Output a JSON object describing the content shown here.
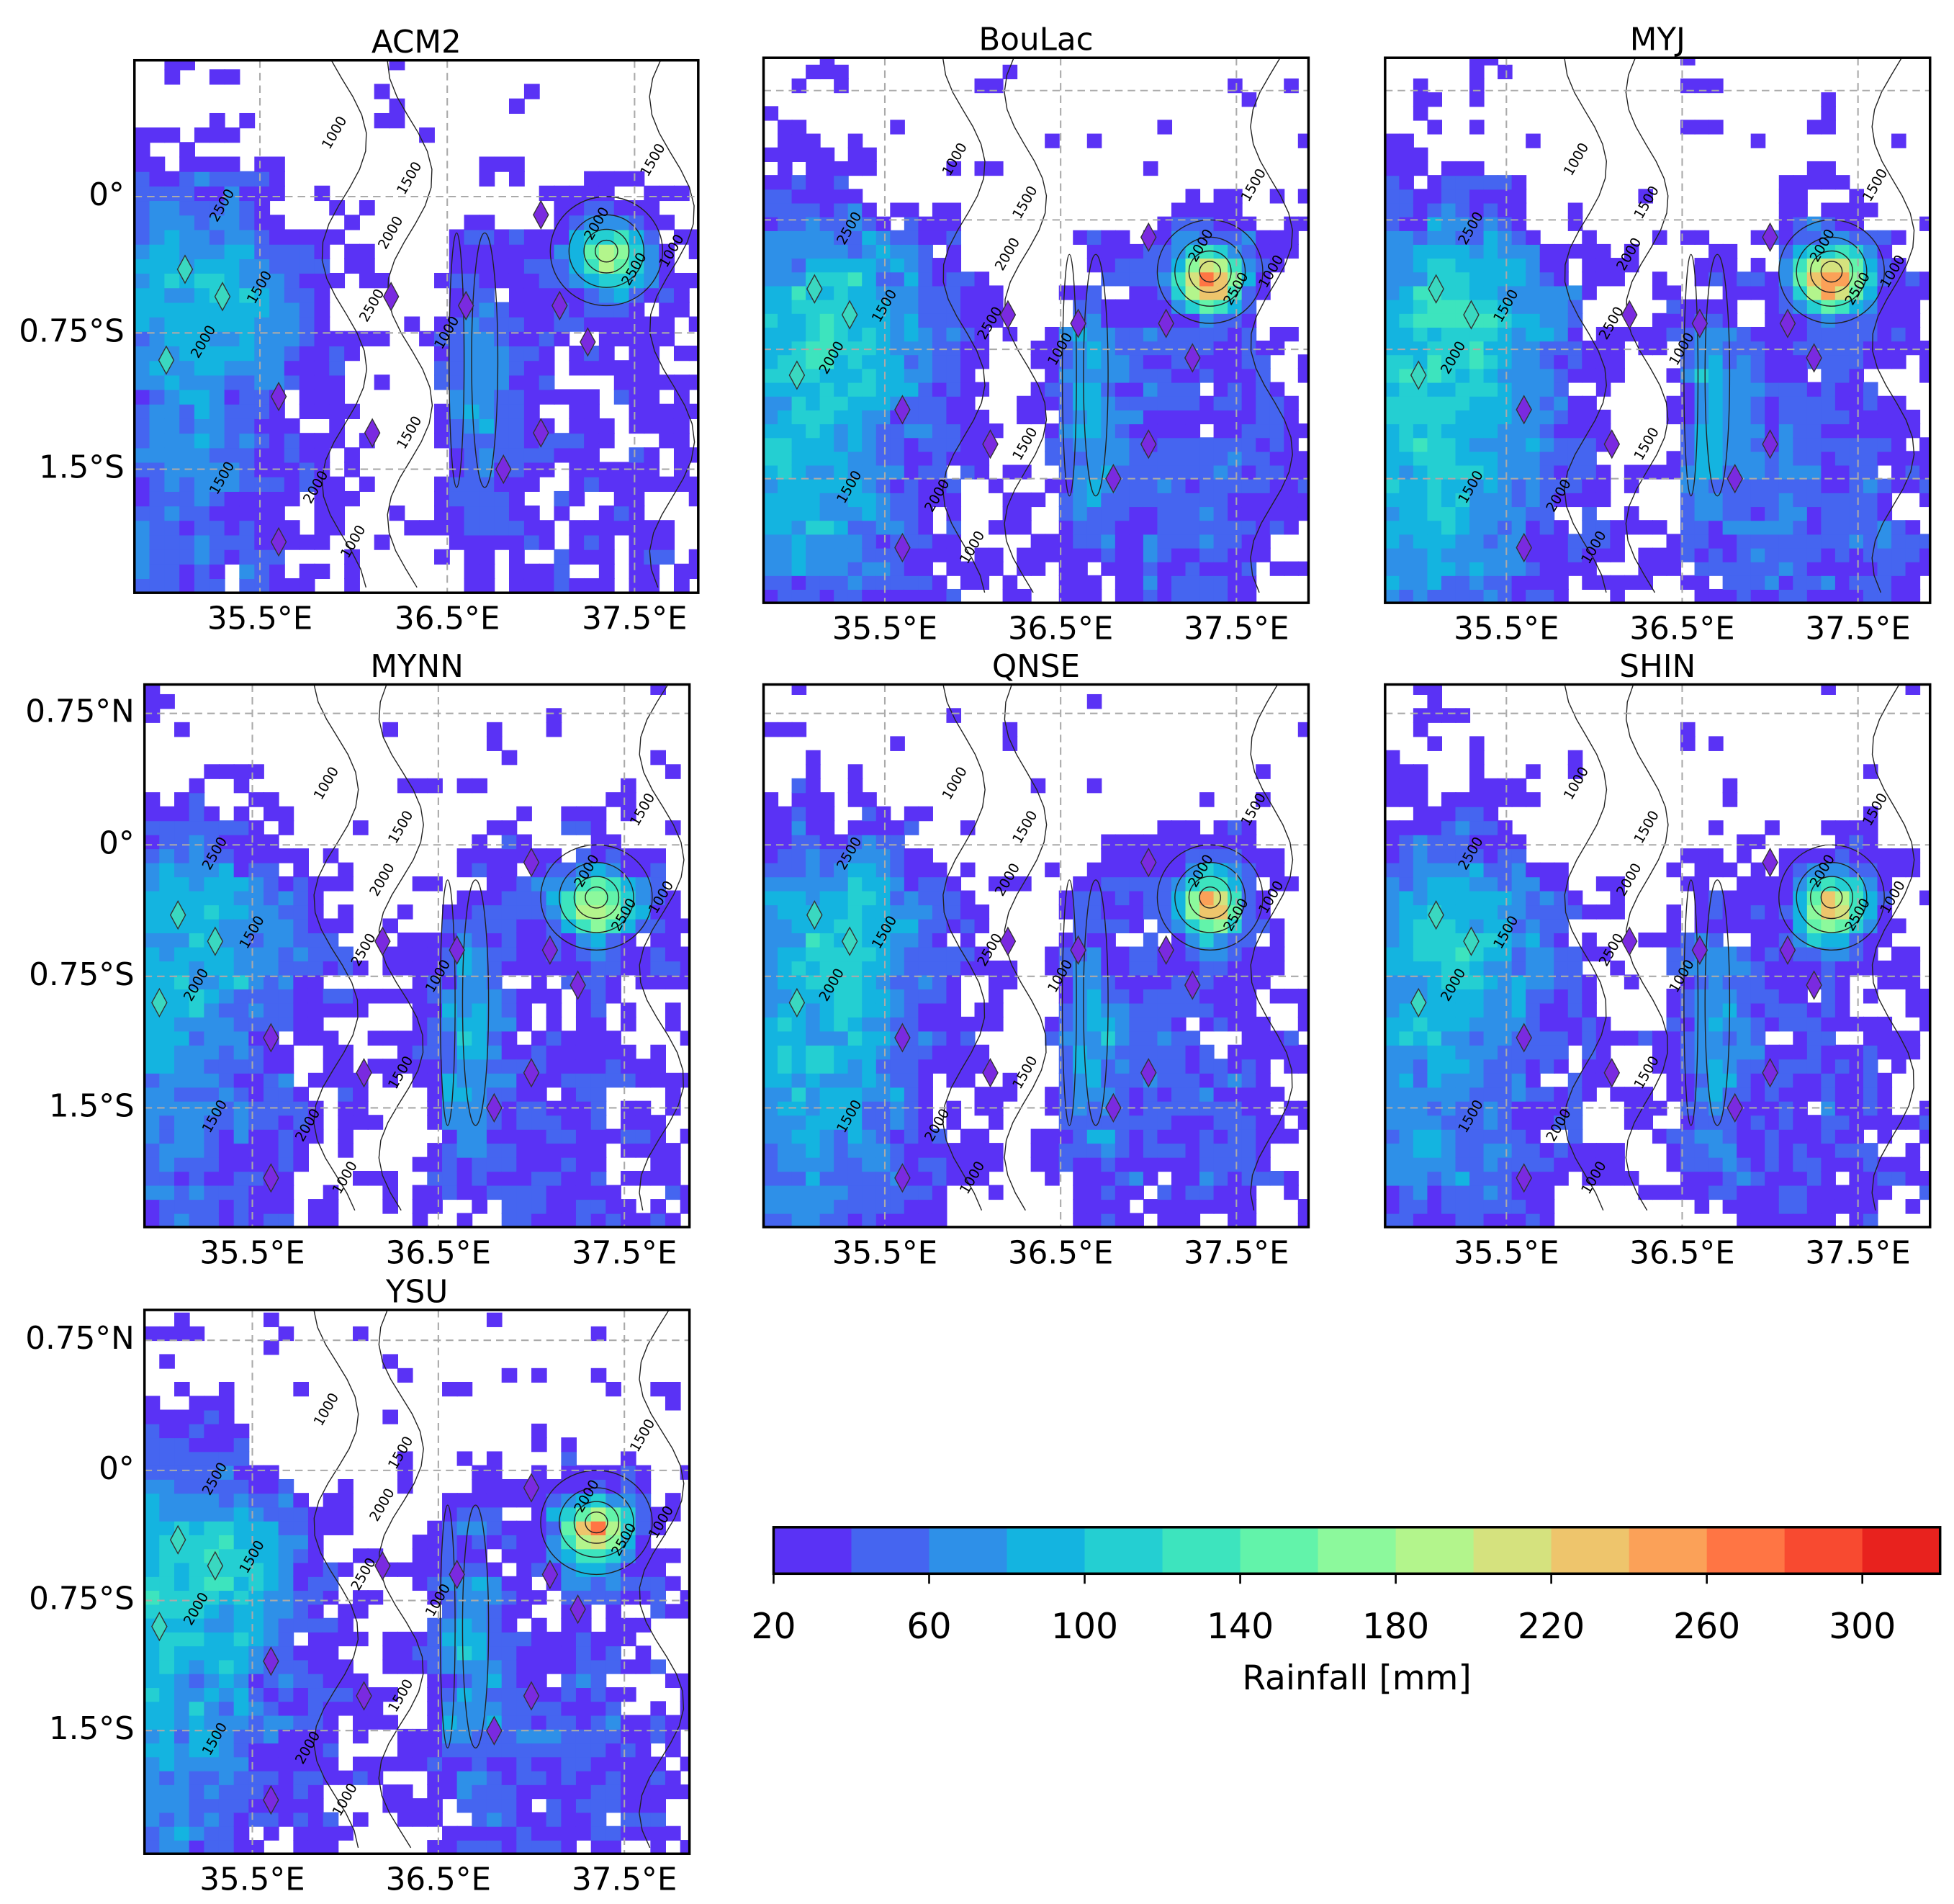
{
  "panels": [
    {
      "title": "ACM2",
      "lonlim": [
        34.83,
        37.84
      ],
      "latlim": [
        -2.18,
        0.75
      ],
      "show_lat_labels": true
    },
    {
      "title": "BouLac",
      "lonlim": [
        34.81,
        37.91
      ],
      "latlim": [
        -2.22,
        0.94
      ],
      "show_lat_labels": false
    },
    {
      "title": "MYJ",
      "lonlim": [
        34.81,
        37.91
      ],
      "latlim": [
        -2.22,
        0.94
      ],
      "show_lat_labels": false
    },
    {
      "title": "MYNN",
      "lonlim": [
        34.92,
        37.85
      ],
      "latlim": [
        -2.18,
        0.915
      ],
      "show_lat_labels": true
    },
    {
      "title": "QNSE",
      "lonlim": [
        34.81,
        37.91
      ],
      "latlim": [
        -2.18,
        0.915
      ],
      "show_lat_labels": false
    },
    {
      "title": "SHIN",
      "lonlim": [
        34.81,
        37.91
      ],
      "latlim": [
        -2.18,
        0.915
      ],
      "show_lat_labels": false
    },
    {
      "title": "YSU",
      "lonlim": [
        34.92,
        37.85
      ],
      "latlim": [
        -2.21,
        0.925
      ],
      "show_lat_labels": true
    }
  ],
  "lon_ticks": [
    {
      "value": 35.5,
      "label": "35.5°E"
    },
    {
      "value": 36.5,
      "label": "36.5°E"
    },
    {
      "value": 37.5,
      "label": "37.5°E"
    }
  ],
  "lat_ticks": [
    {
      "value": 0.75,
      "label": "0.75°N"
    },
    {
      "value": 0,
      "label": "0°"
    },
    {
      "value": -0.75,
      "label": "0.75°S"
    },
    {
      "value": -1.5,
      "label": "1.5°S"
    }
  ],
  "contour_levels": [
    1000,
    1500,
    2000,
    2500
  ],
  "colorbar": {
    "label": "Rainfall [mm]",
    "bounds": [
      20,
      40,
      60,
      80,
      100,
      120,
      140,
      160,
      180,
      200,
      220,
      240,
      260,
      280,
      300,
      320
    ],
    "colors": [
      "#5a32f5",
      "#4565f0",
      "#2e90e8",
      "#14b4e0",
      "#24cfd2",
      "#3de4be",
      "#62f3aa",
      "#8cf99c",
      "#b3f58c",
      "#d5e27e",
      "#eec56c",
      "#fba158",
      "#ff7544",
      "#f84a30",
      "#e8221e"
    ],
    "ticks": [
      20,
      60,
      100,
      140,
      180,
      220,
      260,
      300
    ]
  }
}
